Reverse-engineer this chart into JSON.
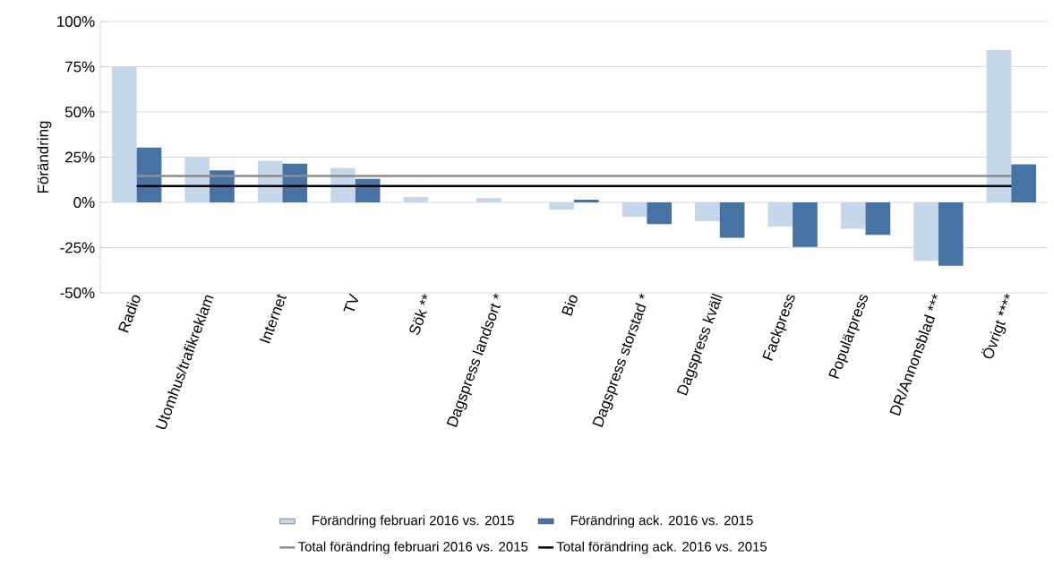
{
  "chart_data": {
    "type": "bar",
    "ylabel": "Förändring",
    "categories": [
      "Radio",
      "Utomhus/trafikreklam",
      "Internet",
      "TV",
      "Sök **",
      "Dagspress landsort *",
      "Bio",
      "Dagspress storstad *",
      "Dagspress kväll",
      "Fackpress",
      "Populärpress",
      "DR/Annonsblad ***",
      "Övrigt ****"
    ],
    "series": [
      {
        "name": "Förändring februari 2016 vs. 2015",
        "color": "#c5d7eb",
        "values": [
          75,
          25,
          23,
          19,
          3,
          2.4,
          -4,
          -8,
          -10.4,
          -13.3,
          -14.6,
          -32.4,
          84.3
        ]
      },
      {
        "name": "Förändring ack. 2016 vs. 2015",
        "color": "#4673a3",
        "values": [
          30.3,
          17.7,
          21.4,
          13,
          0,
          0,
          1.5,
          -12,
          -19.5,
          -24.6,
          -18,
          -35,
          21
        ]
      },
      {
        "name": "Total förändring februari 2016 vs. 2015",
        "type": "line",
        "color": "#8c8c8c",
        "values": [
          14.6,
          14.6,
          14.6,
          14.6,
          14.6,
          14.6,
          14.6,
          14.6,
          14.6,
          14.6,
          14.6,
          14.6,
          14.6
        ]
      },
      {
        "name": "Total förändring ack. 2016 vs. 2015",
        "type": "line",
        "color": "#000000",
        "values": [
          9,
          9,
          9,
          9,
          9,
          9,
          9,
          9,
          9,
          9,
          9,
          9,
          9
        ]
      }
    ],
    "ylim": [
      -50,
      100
    ],
    "yticks": [
      {
        "value": -50,
        "label": "-50%"
      },
      {
        "value": -25,
        "label": "-25%"
      },
      {
        "value": 0,
        "label": "0%"
      },
      {
        "value": 25,
        "label": "25%"
      },
      {
        "value": 50,
        "label": "50%"
      },
      {
        "value": 75,
        "label": "75%"
      },
      {
        "value": 100,
        "label": "100%"
      }
    ],
    "grid": "y",
    "legend": "bottom"
  }
}
